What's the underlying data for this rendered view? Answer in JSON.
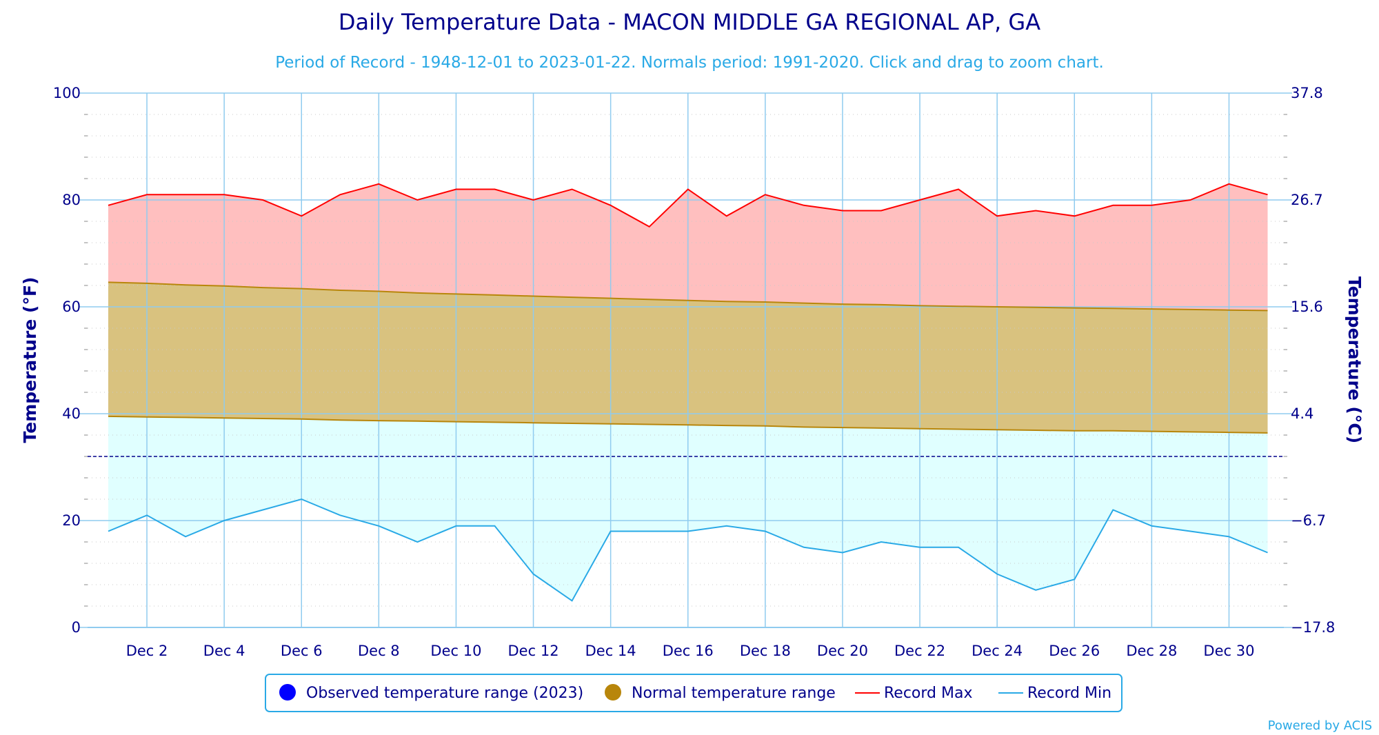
{
  "chart_data": {
    "type": "area",
    "title": "Daily Temperature Data - MACON MIDDLE GA REGIONAL AP, GA",
    "subtitle": "Period of Record - 1948-12-01 to 2023-01-22. Normals period: 1991-2020. Click and drag to zoom chart.",
    "ylabel": "Temperature (°F)",
    "ylabel_right": "Temperature (°C)",
    "ylim": [
      0,
      100
    ],
    "yticks": [
      "0",
      "20",
      "40",
      "60",
      "80",
      "100"
    ],
    "yticks_right": [
      "−17.8",
      "−6.7",
      "4.4",
      "15.6",
      "26.7",
      "37.8"
    ],
    "x_days": [
      1,
      2,
      3,
      4,
      5,
      6,
      7,
      8,
      9,
      10,
      11,
      12,
      13,
      14,
      15,
      16,
      17,
      18,
      19,
      20,
      21,
      22,
      23,
      24,
      25,
      26,
      27,
      28,
      29,
      30,
      31
    ],
    "x_tick_labels": [
      "Dec 2",
      "Dec 4",
      "Dec 6",
      "Dec 8",
      "Dec 10",
      "Dec 12",
      "Dec 14",
      "Dec 16",
      "Dec 18",
      "Dec 20",
      "Dec 22",
      "Dec 24",
      "Dec 26",
      "Dec 28",
      "Dec 30"
    ],
    "freezing_line_f": 32,
    "series": [
      {
        "name": "Record Max",
        "color": "#ff0000",
        "values": [
          79,
          81,
          81,
          81,
          80,
          77,
          81,
          83,
          80,
          82,
          82,
          80,
          82,
          79,
          75,
          82,
          77,
          81,
          79,
          78,
          78,
          80,
          82,
          77,
          78,
          77,
          79,
          79,
          80,
          83,
          81
        ]
      },
      {
        "name": "Record Min",
        "color": "#29a9e6",
        "values": [
          18,
          21,
          17,
          20,
          22,
          24,
          21,
          19,
          16,
          19,
          19,
          10,
          5,
          18,
          18,
          18,
          19,
          18,
          15,
          14,
          16,
          15,
          15,
          10,
          7,
          9,
          22,
          19,
          18,
          17,
          14
        ]
      },
      {
        "name": "Normal High",
        "color": "#b8860b",
        "values": [
          64.6,
          64.4,
          64.1,
          63.9,
          63.6,
          63.4,
          63.1,
          62.9,
          62.6,
          62.4,
          62.2,
          62.0,
          61.8,
          61.6,
          61.4,
          61.2,
          61.0,
          60.9,
          60.7,
          60.5,
          60.4,
          60.2,
          60.1,
          60.0,
          59.9,
          59.8,
          59.7,
          59.6,
          59.5,
          59.4,
          59.3
        ]
      },
      {
        "name": "Normal Low",
        "color": "#b8860b",
        "values": [
          39.5,
          39.4,
          39.3,
          39.2,
          39.1,
          39.0,
          38.8,
          38.7,
          38.6,
          38.5,
          38.4,
          38.3,
          38.2,
          38.1,
          38.0,
          37.9,
          37.8,
          37.7,
          37.5,
          37.4,
          37.3,
          37.2,
          37.1,
          37.0,
          36.9,
          36.8,
          36.8,
          36.7,
          36.6,
          36.5,
          36.4
        ]
      }
    ],
    "legend": [
      {
        "label": "Observed temperature range (2023)",
        "color": "#0000ff",
        "symbol": "circle"
      },
      {
        "label": "Normal temperature range",
        "color": "#b8860b",
        "symbol": "circle"
      },
      {
        "label": "Record Max",
        "color": "#ff0000",
        "symbol": "line"
      },
      {
        "label": "Record Min",
        "color": "#29a9e6",
        "symbol": "line"
      }
    ],
    "fill_colors": {
      "record_max_area": "#ffbfbf",
      "normal_area": "#d9c27f",
      "record_min_area": "#e0ffff"
    },
    "grid": true,
    "legend_position": "bottom"
  },
  "credit": "Powered by ACIS"
}
